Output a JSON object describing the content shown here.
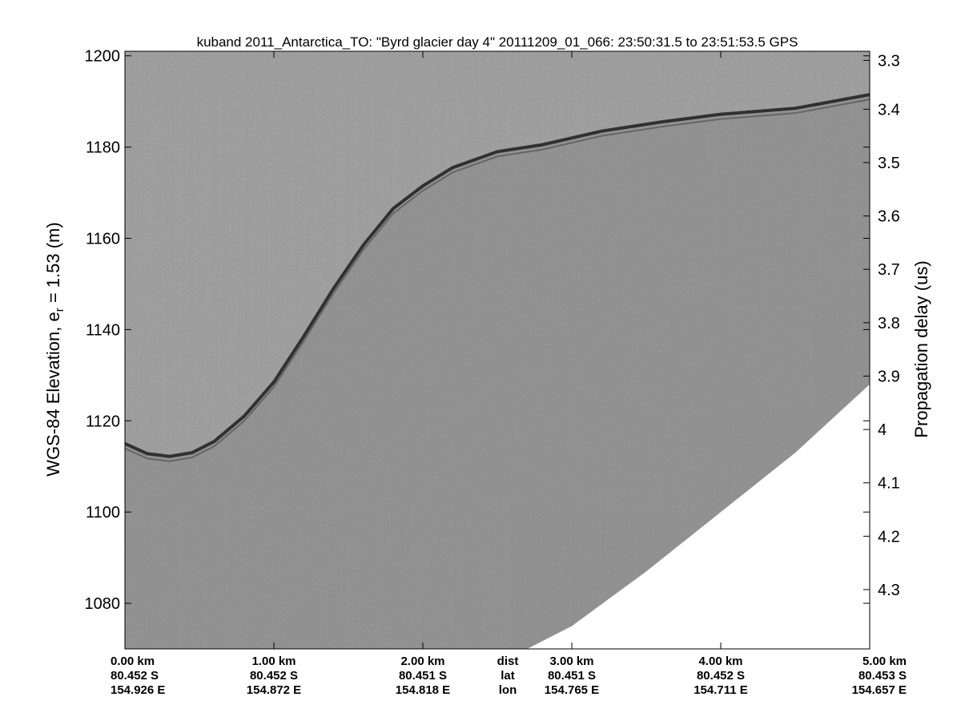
{
  "chart_data": {
    "type": "heatmap",
    "title": "kuband 2011_Antarctica_TO: \"Byrd glacier day 4\"  20111209_01_066: 23:50:31.5 to 23:51:53.5 GPS",
    "ylabel_left_main": "WGS-84 Elevation, e",
    "ylabel_left_sub": "r",
    "ylabel_left_tail": " = 1.53 (m)",
    "ylabel_right": "Propagation delay (us)",
    "colormap": "gray",
    "grid": false,
    "ylim": [
      1070,
      1201
    ],
    "y_ticks_left": [
      1200,
      1180,
      1160,
      1140,
      1120,
      1100,
      1080
    ],
    "y_ticks_right": [
      {
        "label": "3.3",
        "elev": 1199
      },
      {
        "label": "3.4",
        "elev": 1188.3
      },
      {
        "label": "3.5",
        "elev": 1176.6
      },
      {
        "label": "3.6",
        "elev": 1164.9
      },
      {
        "label": "3.7",
        "elev": 1153.2
      },
      {
        "label": "3.8",
        "elev": 1141.5
      },
      {
        "label": "3.9",
        "elev": 1129.8
      },
      {
        "label": "4",
        "elev": 1118.1
      },
      {
        "label": "4.1",
        "elev": 1106.4
      },
      {
        "label": "4.2",
        "elev": 1094.7
      },
      {
        "label": "4.3",
        "elev": 1083.0
      }
    ],
    "xlim_km": [
      0,
      5
    ],
    "x_ticks": [
      {
        "km": 0,
        "dist": "0.00 km",
        "lat": "80.452 S",
        "lon": "154.926 E"
      },
      {
        "km": 1,
        "dist": "1.00 km",
        "lat": "80.452 S",
        "lon": "154.872 E"
      },
      {
        "km": 2,
        "dist": "2.00 km",
        "lat": "80.451 S",
        "lon": "154.818 E"
      },
      {
        "km": 3,
        "dist": "3.00 km",
        "lat": "80.451 S",
        "lon": "154.765 E"
      },
      {
        "km": 4,
        "dist": "4.00 km",
        "lat": "80.452 S",
        "lon": "154.711 E"
      },
      {
        "km": 5,
        "dist": "5.00 km",
        "lat": "80.453 S",
        "lon": "154.657 E"
      }
    ],
    "row_labels": {
      "km": 2.5,
      "dist": "dist",
      "lat": "lat",
      "lon": "lon"
    },
    "surface_trace": {
      "x_km": [
        0,
        0.15,
        0.3,
        0.45,
        0.6,
        0.8,
        1.0,
        1.2,
        1.4,
        1.6,
        1.8,
        2.0,
        2.2,
        2.5,
        2.8,
        3.2,
        3.6,
        4.0,
        4.5,
        5.0
      ],
      "elev": [
        1115,
        1112.8,
        1112.2,
        1113,
        1115.5,
        1121,
        1128.5,
        1138.5,
        1149,
        1158.5,
        1166.5,
        1171.5,
        1175.5,
        1179,
        1180.5,
        1183.5,
        1185.5,
        1187.2,
        1188.5,
        1191.5
      ]
    },
    "data_floor": {
      "x_km": [
        0,
        1.0,
        2.0,
        2.7,
        3.0,
        3.5,
        4.0,
        4.5,
        5.0
      ],
      "elev": [
        1070,
        1070,
        1070,
        1070,
        1075,
        1087,
        1100,
        1113,
        1128
      ]
    }
  }
}
